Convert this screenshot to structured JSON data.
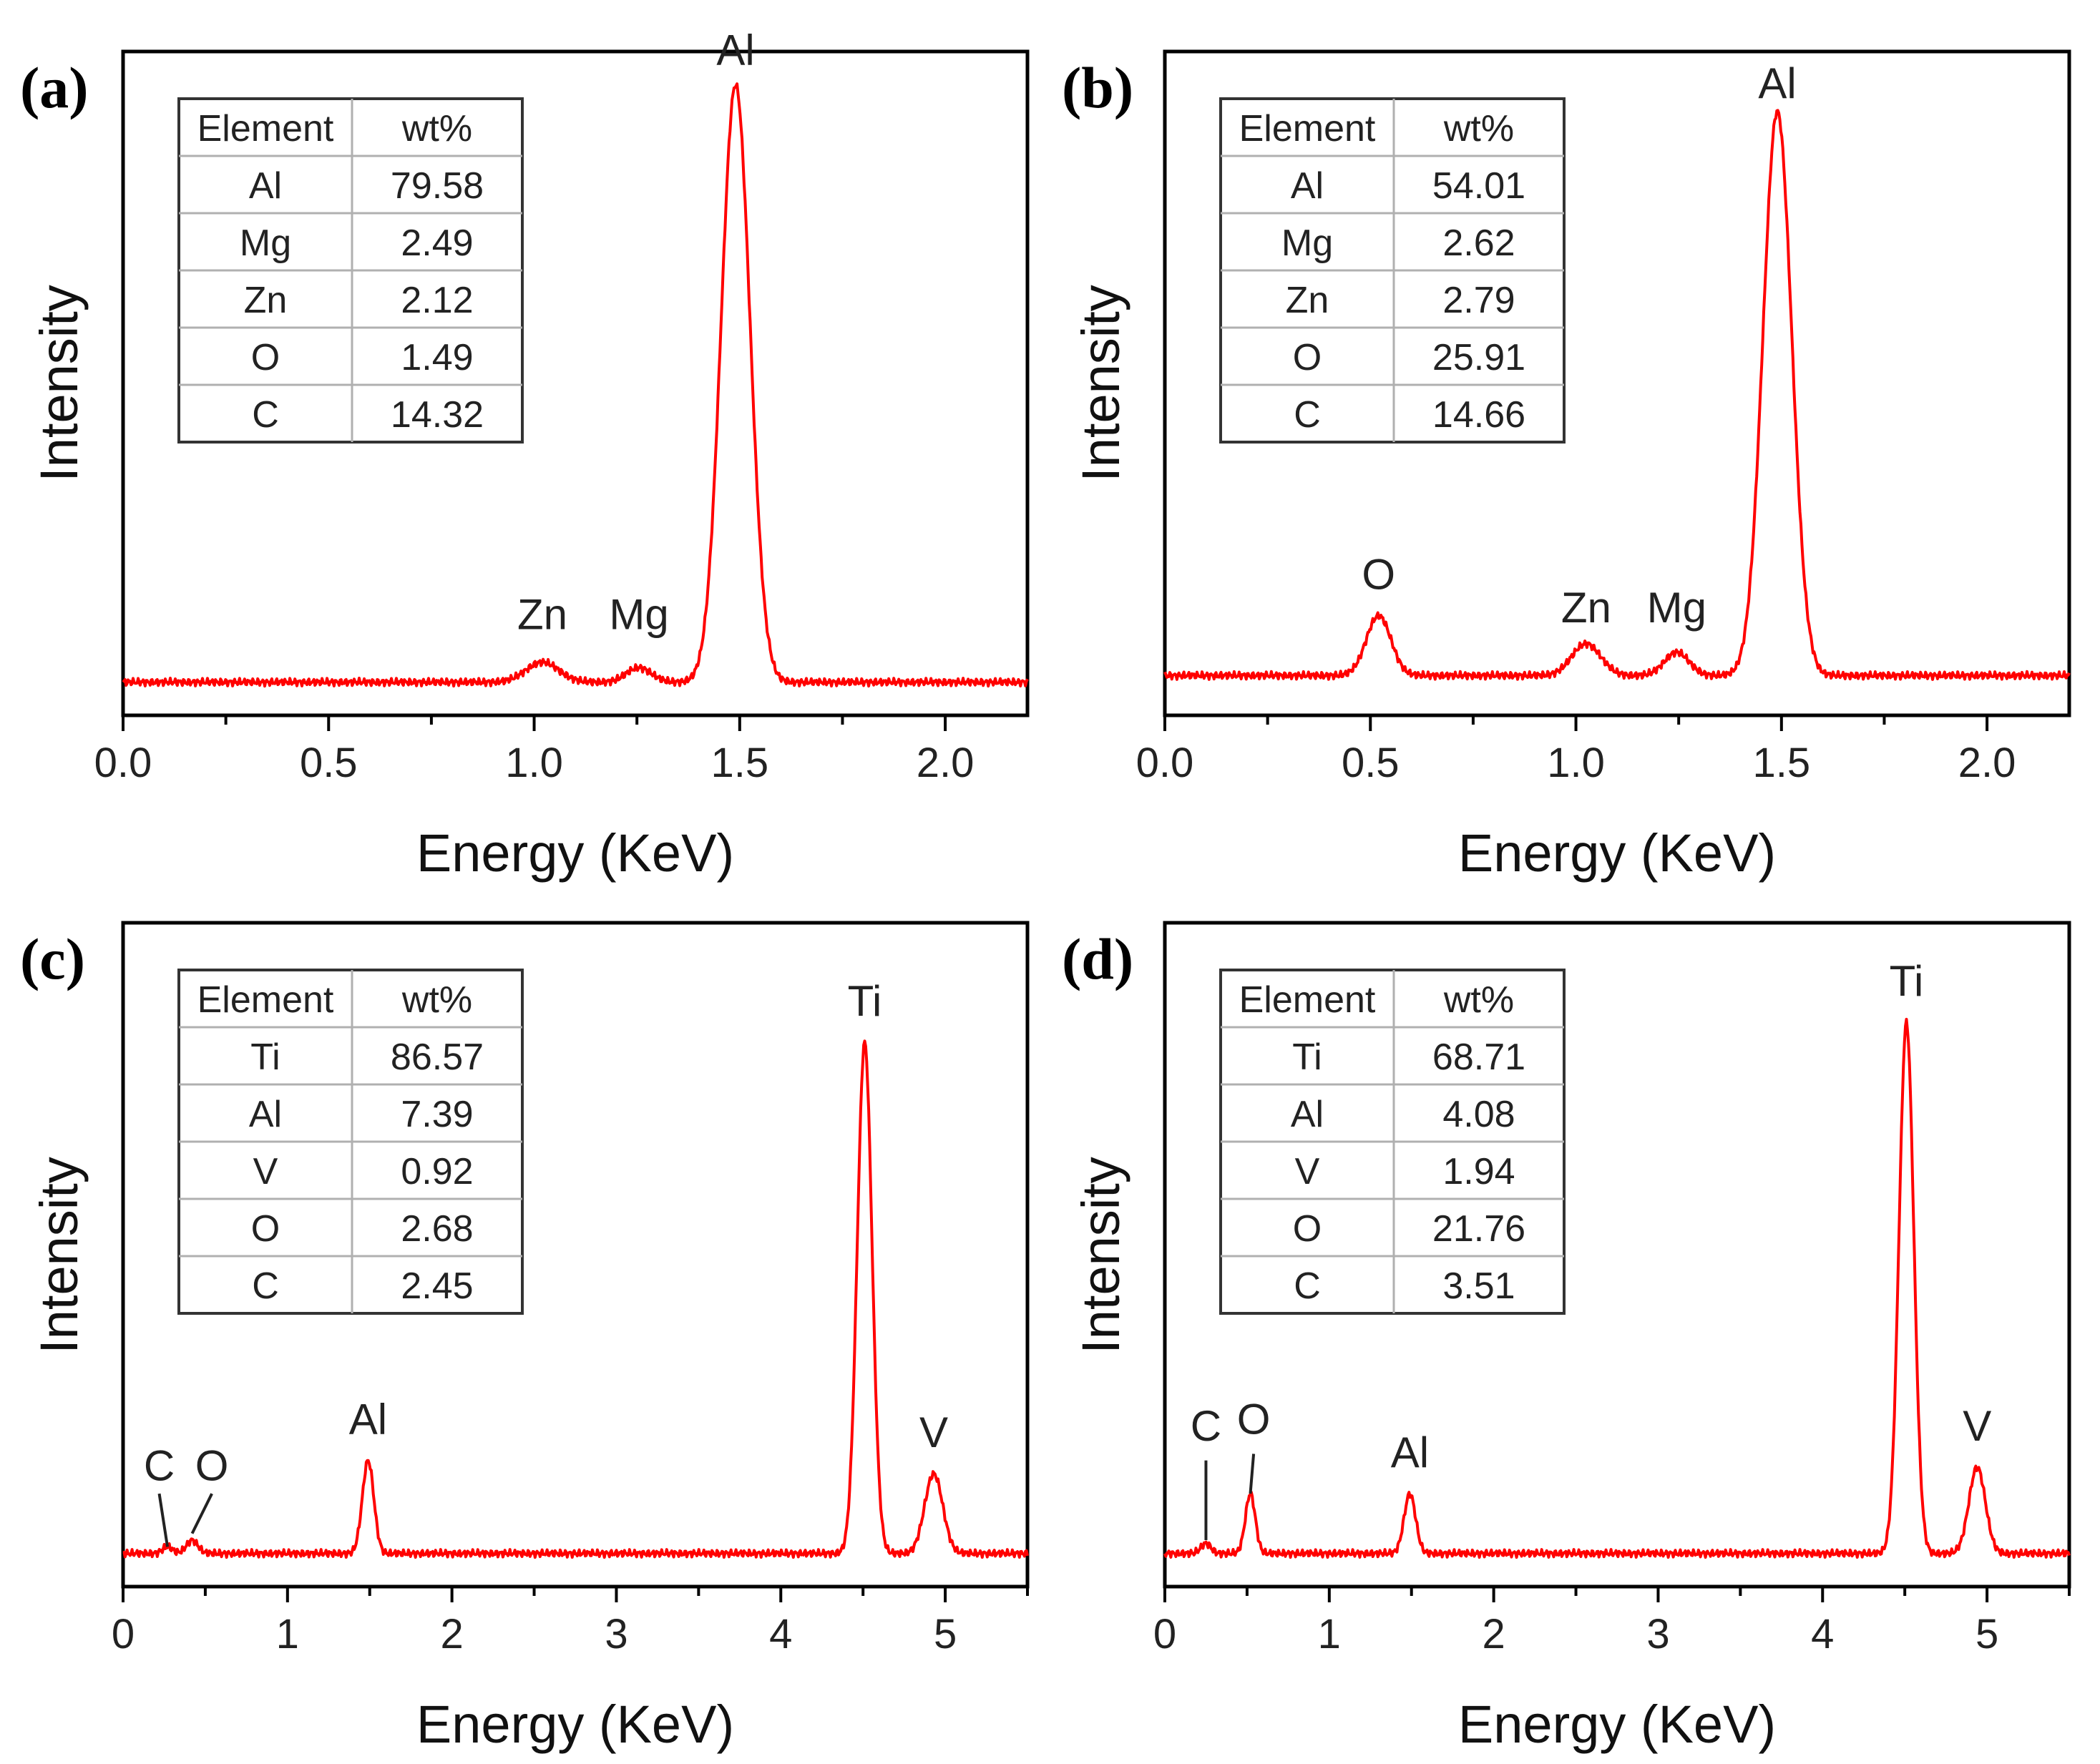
{
  "chart_data": [
    {
      "panel": "(a)",
      "type": "line",
      "xlabel": "Energy (KeV)",
      "ylabel": "Intensity",
      "xlim": [
        0,
        2.2
      ],
      "ylim": [
        0,
        100
      ],
      "xticks": [
        0.0,
        0.5,
        1.0,
        1.5,
        2.0
      ],
      "xtick_labels": [
        "0.0",
        "0.5",
        "1.0",
        "1.5",
        "2.0"
      ],
      "minor_step": 0.25,
      "baseline": 5,
      "peaks": [
        {
          "label": "Zn",
          "x": 1.02,
          "height": 3.0,
          "width": 0.04,
          "label_y": 13
        },
        {
          "label": "Mg",
          "x": 1.255,
          "height": 2.2,
          "width": 0.03,
          "label_y": 13
        },
        {
          "label": "Al",
          "x": 1.49,
          "height": 90,
          "width": 0.035,
          "label_y": 98
        }
      ],
      "table": {
        "header": [
          "Element",
          "wt%"
        ],
        "rows": [
          [
            "Al",
            "79.58"
          ],
          [
            "Mg",
            "2.49"
          ],
          [
            "Zn",
            "2.12"
          ],
          [
            "O",
            "1.49"
          ],
          [
            "C",
            "14.32"
          ]
        ]
      }
    },
    {
      "panel": "(b)",
      "type": "line",
      "xlabel": "Energy (KeV)",
      "ylabel": "Intensity",
      "xlim": [
        0,
        2.2
      ],
      "ylim": [
        0,
        100
      ],
      "xticks": [
        0.0,
        0.5,
        1.0,
        1.5,
        2.0
      ],
      "xtick_labels": [
        "0.0",
        "0.5",
        "1.0",
        "1.5",
        "2.0"
      ],
      "minor_step": 0.25,
      "baseline": 6,
      "peaks": [
        {
          "label": "O",
          "x": 0.52,
          "height": 9,
          "width": 0.03,
          "label_y": 19
        },
        {
          "label": "Zn",
          "x": 1.025,
          "height": 4.8,
          "width": 0.035,
          "label_y": 14
        },
        {
          "label": "Mg",
          "x": 1.245,
          "height": 3.5,
          "width": 0.03,
          "label_y": 14
        },
        {
          "label": "Al",
          "x": 1.49,
          "height": 85,
          "width": 0.035,
          "label_y": 93
        }
      ],
      "table": {
        "header": [
          "Element",
          "wt%"
        ],
        "rows": [
          [
            "Al",
            "54.01"
          ],
          [
            "Mg",
            "2.62"
          ],
          [
            "Zn",
            "2.79"
          ],
          [
            "O",
            "25.91"
          ],
          [
            "C",
            "14.66"
          ]
        ]
      }
    },
    {
      "panel": "(c)",
      "type": "line",
      "xlabel": "Energy (KeV)",
      "ylabel": "Intensity",
      "xlim": [
        0,
        5.5
      ],
      "ylim": [
        0,
        100
      ],
      "xticks": [
        0,
        1,
        2,
        3,
        4,
        5
      ],
      "xtick_labels": [
        "0",
        "1",
        "2",
        "3",
        "4",
        "5"
      ],
      "minor_step": 0.5,
      "baseline": 5,
      "peaks": [
        {
          "label": "C",
          "x": 0.27,
          "height": 1.0,
          "width": 0.03,
          "label_y": 16,
          "label_dx": -0.05,
          "leader": [
            6,
            14
          ]
        },
        {
          "label": "O",
          "x": 0.42,
          "height": 2.0,
          "width": 0.035,
          "label_y": 16,
          "label_dx": 0.12,
          "leader": [
            8,
            14
          ]
        },
        {
          "label": "Al",
          "x": 1.49,
          "height": 14,
          "width": 0.035,
          "label_y": 23
        },
        {
          "label": "Ti",
          "x": 4.51,
          "height": 77,
          "width": 0.045,
          "label_y": 86
        },
        {
          "label": "V",
          "x": 4.93,
          "height": 12,
          "width": 0.055,
          "label_y": 21
        }
      ],
      "table": {
        "header": [
          "Element",
          "wt%"
        ],
        "rows": [
          [
            "Ti",
            "86.57"
          ],
          [
            "Al",
            "7.39"
          ],
          [
            "V",
            "0.92"
          ],
          [
            "O",
            "2.68"
          ],
          [
            "C",
            "2.45"
          ]
        ]
      }
    },
    {
      "panel": "(d)",
      "type": "line",
      "xlabel": "Energy (KeV)",
      "ylabel": "Intensity",
      "xlim": [
        0,
        5.5
      ],
      "ylim": [
        0,
        100
      ],
      "xticks": [
        0,
        1,
        2,
        3,
        4,
        5
      ],
      "xtick_labels": [
        "0",
        "1",
        "2",
        "3",
        "4",
        "5"
      ],
      "minor_step": 0.5,
      "baseline": 5,
      "peaks": [
        {
          "label": "C",
          "x": 0.25,
          "height": 1.5,
          "width": 0.03,
          "label_y": 22,
          "label_dx": 0.0,
          "leader": [
            7,
            19
          ]
        },
        {
          "label": "O",
          "x": 0.52,
          "height": 9,
          "width": 0.03,
          "label_y": 23,
          "label_dx": 0.02,
          "leader": [
            14,
            20
          ]
        },
        {
          "label": "Al",
          "x": 1.49,
          "height": 9,
          "width": 0.035,
          "label_y": 18
        },
        {
          "label": "Ti",
          "x": 4.51,
          "height": 80,
          "width": 0.045,
          "label_y": 89
        },
        {
          "label": "V",
          "x": 4.94,
          "height": 13,
          "width": 0.05,
          "label_y": 22
        }
      ],
      "table": {
        "header": [
          "Element",
          "wt%"
        ],
        "rows": [
          [
            "Ti",
            "68.71"
          ],
          [
            "Al",
            "4.08"
          ],
          [
            "V",
            "1.94"
          ],
          [
            "O",
            "21.76"
          ],
          [
            "C",
            "3.51"
          ]
        ]
      }
    }
  ],
  "colors": {
    "spectrum": "#ff0000",
    "axis": "#000000",
    "table_border": "#333333",
    "table_inner": "#b0b0b0"
  }
}
